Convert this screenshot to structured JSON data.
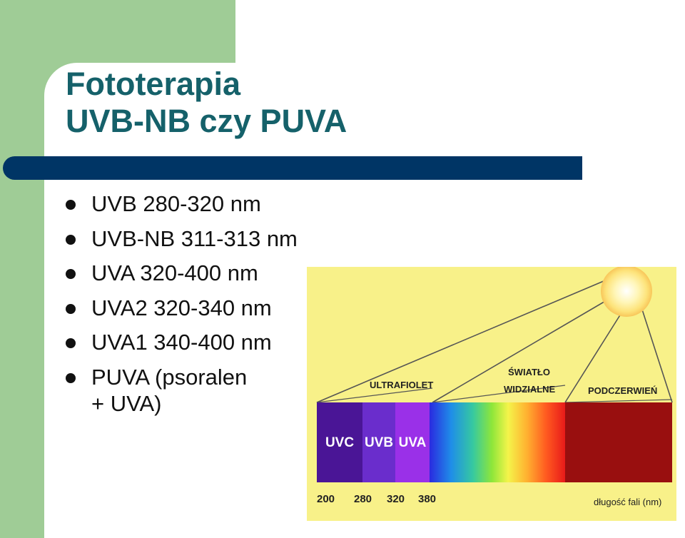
{
  "slide": {
    "title_line1": "Fototerapia",
    "title_line2": "UVB-NB czy PUVA",
    "bullets": [
      {
        "text": "UVB 280-320 nm"
      },
      {
        "text": "UVB-NB 311-313 nm"
      },
      {
        "text": "UVA 320-400 nm"
      },
      {
        "text": "UVA2 320-340 nm"
      },
      {
        "text": "UVA1 340-400 nm"
      },
      {
        "text": "PUVA (psoralen",
        "cont": "+ UVA)"
      }
    ]
  },
  "spectrum": {
    "group_labels": {
      "uv": "ULTRAFIOLET",
      "visible_1": "ŚWIATŁO",
      "visible_2": "WIDZIALNE",
      "ir": "PODCZERWIEŃ"
    },
    "bands": {
      "uvc": "UVC",
      "uvb": "UVB",
      "uva": "UVA"
    },
    "ticks": [
      "200",
      "280",
      "320",
      "380"
    ],
    "axis_label": "długość fali (nm)",
    "colors": {
      "background": "#f8f189",
      "uvc": "#4a1596",
      "uvb": "#6a2dcc",
      "uva": "#9a30e8",
      "ir": "#990f0f",
      "sun": "#fce88a"
    }
  }
}
